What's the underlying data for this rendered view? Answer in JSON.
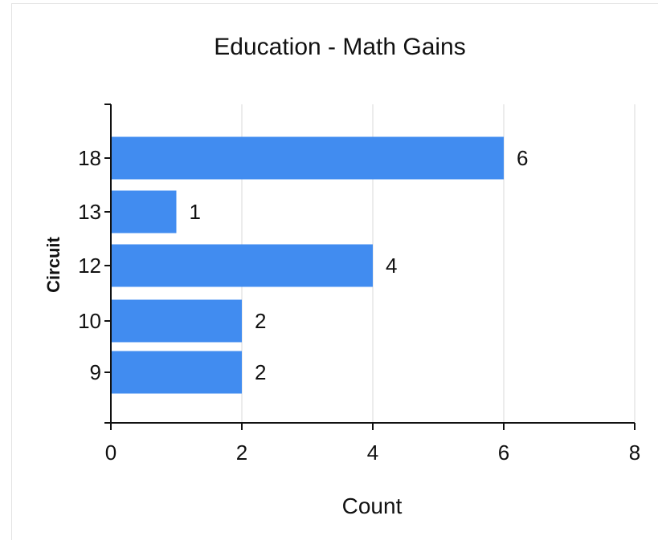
{
  "chart_data": {
    "type": "bar",
    "orientation": "horizontal",
    "title": "Education - Math Gains",
    "xlabel": "Count",
    "ylabel": "Circuit",
    "categories": [
      "18",
      "13",
      "12",
      "10",
      "9"
    ],
    "values": [
      6,
      1,
      4,
      2,
      2
    ],
    "xlim": [
      0,
      8
    ],
    "xticks": [
      "0",
      "2",
      "4",
      "6",
      "8"
    ],
    "bar_color": "#418cf0",
    "grid": "vertical",
    "legend": "none"
  }
}
